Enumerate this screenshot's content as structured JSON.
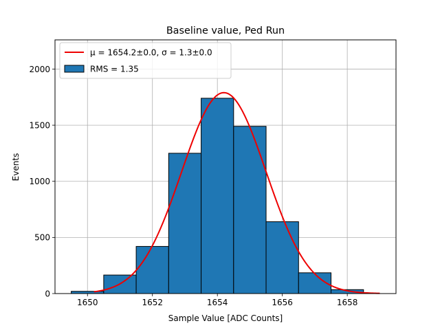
{
  "chart_data": {
    "type": "bar",
    "title": "Baseline value, Ped Run",
    "xlabel": "Sample Value [ADC Counts]",
    "ylabel": "Events",
    "xlim": [
      1649.0,
      1659.5
    ],
    "ylim": [
      0,
      2260
    ],
    "grid": true,
    "legend_placement": "top-left",
    "x_ticks": [
      1650,
      1652,
      1654,
      1656,
      1658
    ],
    "y_ticks": [
      0,
      500,
      1000,
      1500,
      2000
    ],
    "bins": [
      {
        "start": 1649.5,
        "end": 1650.5,
        "count": 20
      },
      {
        "start": 1650.5,
        "end": 1651.5,
        "count": 165
      },
      {
        "start": 1651.5,
        "end": 1652.5,
        "count": 420
      },
      {
        "start": 1652.5,
        "end": 1653.5,
        "count": 1250
      },
      {
        "start": 1653.5,
        "end": 1654.5,
        "count": 1740
      },
      {
        "start": 1654.5,
        "end": 1655.5,
        "count": 1490
      },
      {
        "start": 1655.5,
        "end": 1656.5,
        "count": 640
      },
      {
        "start": 1656.5,
        "end": 1657.5,
        "count": 185
      },
      {
        "start": 1657.5,
        "end": 1658.5,
        "count": 35
      }
    ],
    "fit": {
      "mu": 1654.2,
      "sigma": 1.3,
      "amplitude": 1790,
      "x_range": [
        1650.2,
        1659.0
      ]
    },
    "legend": [
      {
        "label": "μ = 1654.2±0.0, σ = 1.3±0.0",
        "type": "line",
        "color": "#ee0000"
      },
      {
        "label": "RMS = 1.35",
        "type": "patch",
        "color": "#1f77b4"
      }
    ],
    "colors": {
      "bar_fill": "#1f77b4",
      "bar_edge": "#000000",
      "fit_line": "#ee0000",
      "grid": "#b0b0b0"
    }
  }
}
